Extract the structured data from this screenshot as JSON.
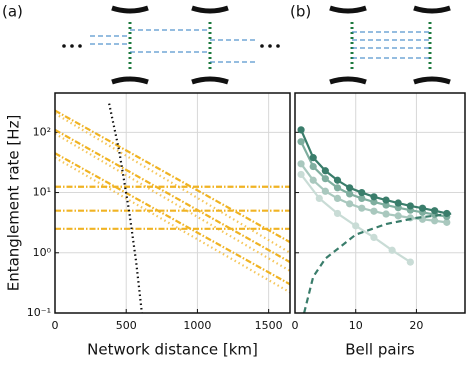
{
  "chart_data": [
    {
      "type": "line",
      "label": "(a)",
      "xlabel": "Network distance [km]",
      "ylabel": "Entanglement rate [Hz]",
      "xlim": [
        0,
        1650
      ],
      "ylim": [
        0.1,
        450
      ],
      "log_y": true,
      "grid": true,
      "xticks": [
        0,
        500,
        1000,
        1500
      ],
      "yticks": [
        {
          "value": 0.1,
          "label": "10⁻¹"
        },
        {
          "value": 1,
          "label": "10⁰"
        },
        {
          "value": 10,
          "label": "10¹"
        },
        {
          "value": 100,
          "label": "10²"
        }
      ],
      "series": [
        {
          "color": "#f0b323",
          "dash": "dashdot",
          "x": [
            0,
            1650
          ],
          "values": [
            230,
            1.5
          ]
        },
        {
          "color": "#f5c65a",
          "dash": "dot",
          "x": [
            0,
            1650
          ],
          "values": [
            205,
            1.0
          ]
        },
        {
          "color": "#f0b323",
          "dash": "dashdot",
          "x": [
            0,
            1650
          ],
          "values": [
            110,
            0.7
          ]
        },
        {
          "color": "#f5c65a",
          "dash": "dot",
          "x": [
            0,
            1650
          ],
          "values": [
            95,
            0.5
          ]
        },
        {
          "color": "#f0b323",
          "dash": "dashdot",
          "x": [
            0,
            1650
          ],
          "values": [
            45,
            0.3
          ]
        },
        {
          "color": "#f5c65a",
          "dash": "dot",
          "x": [
            0,
            1650
          ],
          "values": [
            38,
            0.22
          ]
        },
        {
          "color": "#f0b323",
          "dash": "dashdot",
          "x": [
            0,
            1650
          ],
          "values": [
            12.5,
            12.5
          ]
        },
        {
          "color": "#f0b323",
          "dash": "dashdot",
          "x": [
            0,
            1650
          ],
          "values": [
            5,
            5
          ]
        },
        {
          "color": "#f0b323",
          "dash": "dashdot",
          "x": [
            0,
            1650
          ],
          "values": [
            2.5,
            2.5
          ]
        },
        {
          "color": "#111111",
          "dash": "dot",
          "x": [
            380,
            450,
            520,
            570,
            610
          ],
          "values": [
            300,
            50,
            5,
            0.7,
            0.1
          ]
        }
      ]
    },
    {
      "type": "line",
      "label": "(b)",
      "xlabel": "Bell pairs",
      "xlim": [
        0,
        28
      ],
      "ylim": [
        0.1,
        450
      ],
      "log_y": true,
      "grid": true,
      "xticks": [
        0,
        10,
        20
      ],
      "yticks": [
        0.1,
        1,
        10,
        100
      ],
      "series": [
        {
          "color": "#c9dcd6",
          "dash": "solid",
          "markers": true,
          "x": [
            1,
            4,
            7,
            10,
            13,
            16,
            19
          ],
          "values": [
            20,
            8,
            4.5,
            2.8,
            1.8,
            1.1,
            0.7
          ]
        },
        {
          "color": "#a9c8be",
          "dash": "solid",
          "markers": true,
          "x": [
            1,
            3,
            5,
            7,
            9,
            11,
            13,
            15,
            17,
            19,
            21,
            23,
            25
          ],
          "values": [
            30,
            16,
            10.5,
            8,
            6.5,
            5.5,
            4.9,
            4.4,
            4.1,
            3.8,
            3.6,
            3.4,
            3.2
          ]
        },
        {
          "color": "#7fae9f",
          "dash": "solid",
          "markers": true,
          "x": [
            1,
            3,
            5,
            7,
            9,
            11,
            13,
            15,
            17,
            19,
            21,
            23,
            25
          ],
          "values": [
            70,
            27,
            17,
            12,
            9.5,
            8,
            7,
            6.2,
            5.6,
            5.1,
            4.7,
            4.3,
            4.0
          ]
        },
        {
          "color": "#3a7d6b",
          "dash": "solid",
          "markers": true,
          "x": [
            1,
            3,
            5,
            7,
            9,
            11,
            13,
            15,
            17,
            19,
            21,
            23,
            25
          ],
          "values": [
            110,
            38,
            23,
            16,
            12,
            10,
            8.5,
            7.5,
            6.7,
            6,
            5.5,
            5,
            4.5
          ]
        },
        {
          "color": "#3a7d6b",
          "dash": "dash",
          "x": [
            1.5,
            3,
            5,
            10,
            15,
            20,
            26
          ],
          "values": [
            0.1,
            0.4,
            0.8,
            2,
            3,
            3.8,
            4.5
          ]
        }
      ]
    }
  ]
}
